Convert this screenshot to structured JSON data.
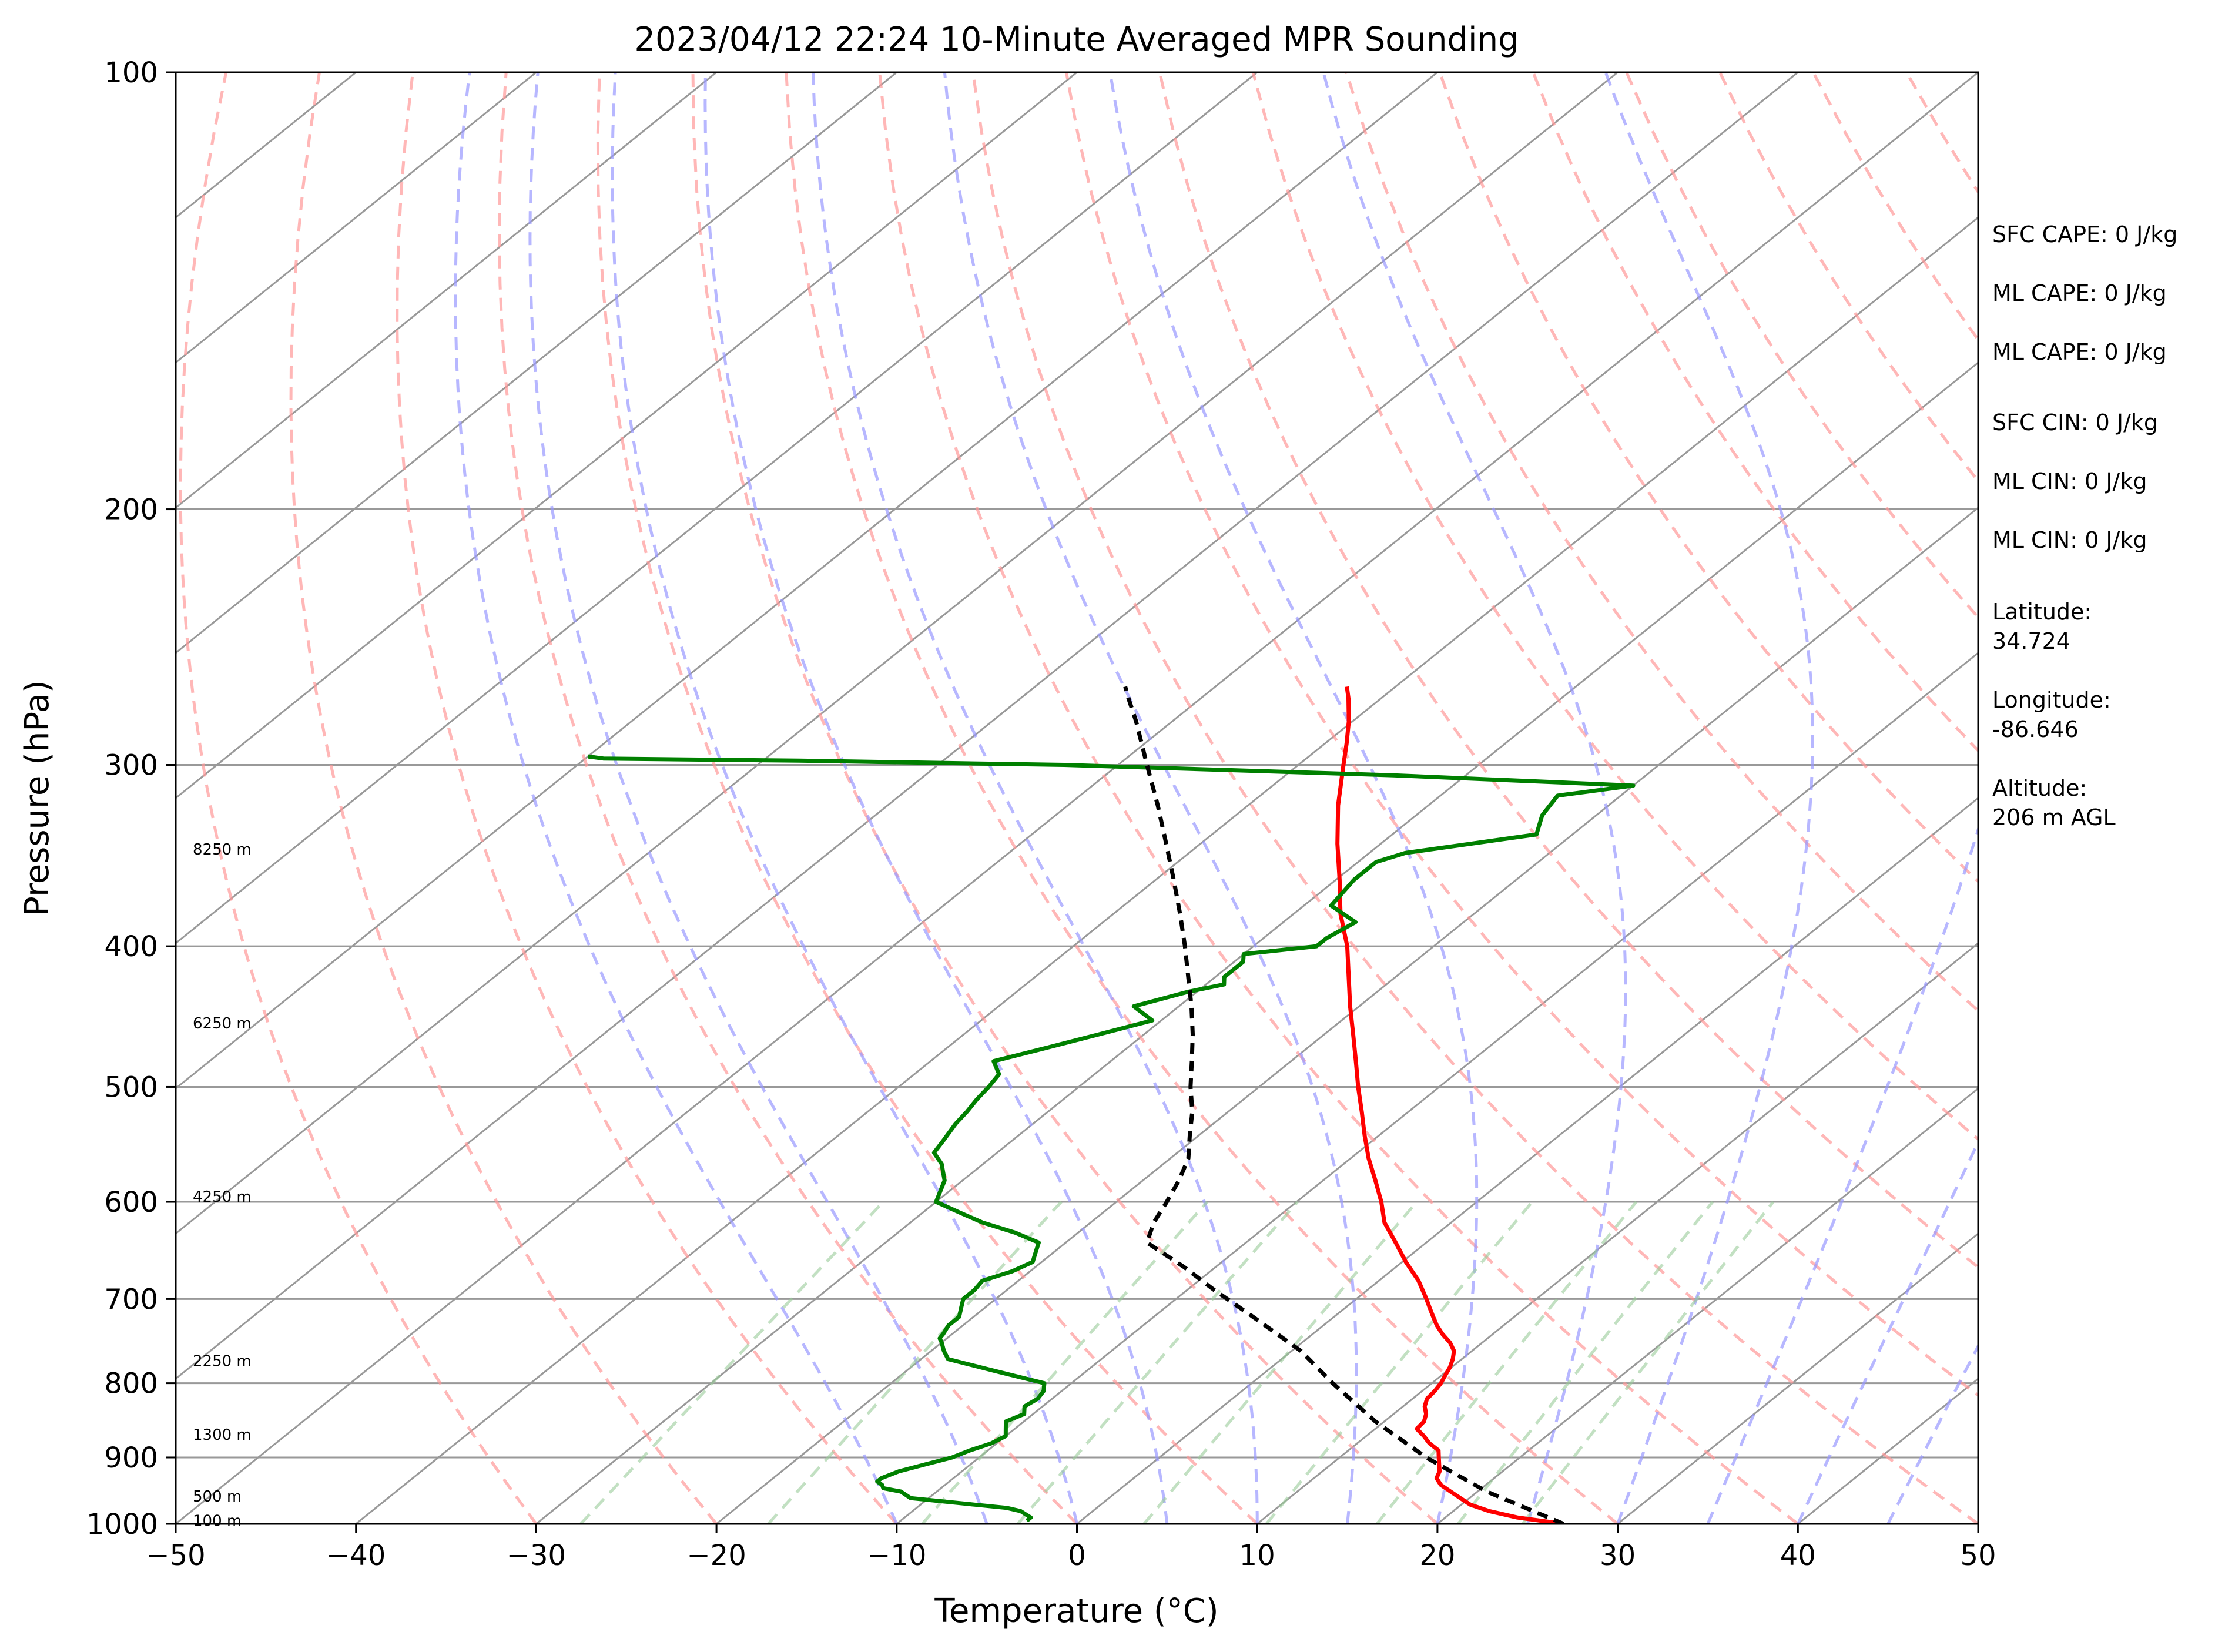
{
  "chart_data": {
    "type": "line",
    "title": "2023/04/12 22:24 10-Minute Averaged MPR Sounding",
    "xlabel": "Temperature (°C)",
    "ylabel": "Pressure (hPa)",
    "xlim": [
      -50,
      50
    ],
    "ylim": [
      1000,
      100
    ],
    "y_scale": "log",
    "x_ticks": [
      "−50",
      "−40",
      "−30",
      "−20",
      "−10",
      "0",
      "10",
      "20",
      "30",
      "40",
      "50"
    ],
    "y_ticks": [
      "100",
      "200",
      "300",
      "400",
      "500",
      "600",
      "700",
      "800",
      "900",
      "1000"
    ],
    "colors": {
      "temperature": "#ff0000",
      "dewpoint": "#008000",
      "parcel": "#000000",
      "dry_adiabats": "#ff9999",
      "moist_adiabats": "#9999ff",
      "mixing_ratio": "#99cc99",
      "isotherms": "#999999"
    },
    "series": [
      {
        "pressure": [
          1000,
          990,
          980,
          970,
          960,
          950,
          940,
          930,
          920,
          910,
          900,
          890,
          880,
          870,
          860,
          850,
          840,
          830,
          820,
          810,
          800,
          790,
          780,
          770,
          760,
          750,
          740,
          730,
          720,
          710,
          700,
          680,
          660,
          640,
          620,
          600,
          580,
          560,
          540,
          520,
          500,
          480,
          460,
          440,
          420,
          400,
          380,
          360,
          340,
          320,
          300,
          290,
          280,
          270,
          265
        ],
        "temperature": [
          27,
          24,
          22,
          20.5,
          19.5,
          18.5,
          17.5,
          16.8,
          16.5,
          16,
          15.5,
          15,
          14,
          13.2,
          12.3,
          12.2,
          11.8,
          11.2,
          10.8,
          10.7,
          10.5,
          10.2,
          9.9,
          9.5,
          9,
          8.2,
          7.2,
          6.3,
          5.5,
          4.7,
          3.9,
          2.2,
          0.2,
          -1.7,
          -3.7,
          -5.3,
          -7.1,
          -9,
          -10.8,
          -12.6,
          -14.5,
          -16.4,
          -18.4,
          -20.5,
          -22.6,
          -24.8,
          -27.4,
          -29.8,
          -32.4,
          -35,
          -37.5,
          -38.8,
          -40.2,
          -41.8,
          -42.7
        ]
      },
      {
        "pressure": [
          995,
          990,
          985,
          980,
          975,
          970,
          960,
          950,
          945,
          940,
          935,
          930,
          920,
          910,
          900,
          890,
          880,
          870,
          860,
          850,
          840,
          830,
          820,
          810,
          800,
          785,
          770,
          760,
          750,
          745,
          740,
          730,
          720,
          710,
          700,
          690,
          680,
          670,
          660,
          650,
          640,
          630,
          620,
          610,
          600,
          580,
          565,
          555,
          545,
          530,
          520,
          510,
          500,
          490,
          480,
          470,
          460,
          450,
          445,
          440,
          430,
          425,
          420,
          410,
          405,
          400,
          395,
          385,
          375,
          360,
          350,
          345,
          335,
          325,
          315,
          310,
          305,
          300,
          298,
          297,
          296
        ],
        "dewpoint": [
          -3,
          -3,
          -3.5,
          -4,
          -5,
          -7,
          -11,
          -12,
          -13.2,
          -13.5,
          -14,
          -14,
          -13.5,
          -12.5,
          -11.5,
          -11,
          -10.3,
          -10,
          -10.5,
          -11,
          -10.5,
          -11,
          -10.8,
          -11,
          -11.5,
          -15,
          -18.5,
          -19.3,
          -20,
          -20.4,
          -20.5,
          -20.8,
          -20.8,
          -21.3,
          -21.8,
          -21.8,
          -22,
          -21,
          -20.5,
          -21,
          -21.5,
          -23.5,
          -26,
          -28,
          -30,
          -31,
          -32.3,
          -33.5,
          -33.8,
          -34.3,
          -34.5,
          -34.8,
          -35,
          -35.3,
          -36.5,
          -34.5,
          -32.5,
          -30.5,
          -31.5,
          -32.5,
          -30.5,
          -29,
          -29.5,
          -29.5,
          -30,
          -26.5,
          -26.5,
          -26,
          -28.5,
          -29,
          -29,
          -28,
          -22,
          -23,
          -23.5,
          -20,
          -34,
          -53,
          -68,
          -79,
          -80
        ]
      },
      {
        "pressure": [
          1000,
          950,
          900,
          850,
          800,
          760,
          720,
          690,
          665,
          650,
          640,
          620,
          600,
          580,
          560,
          540,
          520,
          500,
          480,
          460,
          440,
          420,
          400,
          380,
          360,
          340,
          320,
          300,
          280,
          270,
          265
        ],
        "parcel": [
          27,
          20.5,
          14.8,
          9.5,
          4.5,
          0.5,
          -4.5,
          -8.5,
          -11.8,
          -14,
          -15.5,
          -16.5,
          -17.2,
          -18,
          -19,
          -20.5,
          -22,
          -23.8,
          -25.5,
          -27.3,
          -29.3,
          -31.5,
          -33.8,
          -36.3,
          -39,
          -41.9,
          -45,
          -48.4,
          -52,
          -54,
          -55
        ]
      }
    ],
    "series_names": [
      "",
      "",
      ""
    ],
    "height_labels": [
      {
        "text": "8250 m",
        "pressure": 343
      },
      {
        "text": "6250 m",
        "pressure": 452
      },
      {
        "text": "4250 m",
        "pressure": 595
      },
      {
        "text": "2250 m",
        "pressure": 772
      },
      {
        "text": "1300 m",
        "pressure": 868
      },
      {
        "text": "500 m",
        "pressure": 957
      },
      {
        "text": "100 m",
        "pressure": 995
      }
    ],
    "stats": [
      "SFC CAPE: 0 J/kg",
      "ML CAPE: 0 J/kg",
      "ML CAPE: 0 J/kg",
      "SFC CIN: 0 J/kg",
      "ML CIN: 0 J/kg",
      "ML CIN: 0 J/kg"
    ],
    "location": {
      "latitude_label": "Latitude:",
      "latitude_value": "34.724",
      "longitude_label": "Longitude:",
      "longitude_value": "-86.646",
      "altitude_label": "Altitude:",
      "altitude_value": "206 m AGL"
    }
  }
}
